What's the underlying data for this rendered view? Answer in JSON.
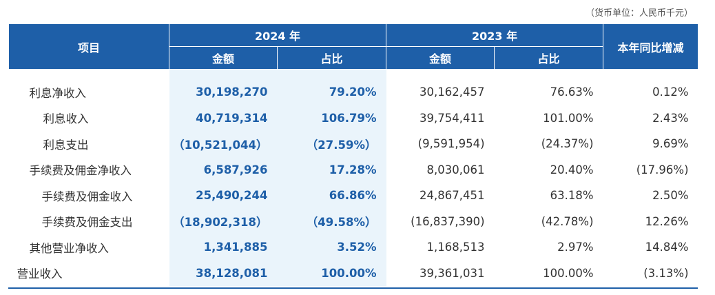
{
  "unit_note": "（货币单位：人民币千元）",
  "header": {
    "item": "项目",
    "year_2024": "2024 年",
    "year_2023": "2023 年",
    "yoy": "本年同比增减",
    "amount": "金额",
    "ratio": "占比"
  },
  "rows": [
    {
      "label": "利息净收入",
      "a2024": "30,198,270",
      "r2024": "79.20%",
      "a2023": "30,162,457",
      "r2023": "76.63%",
      "yoy": "0.12%"
    },
    {
      "label": "利息收入",
      "a2024": "40,719,314",
      "r2024": "106.79%",
      "a2023": "39,754,411",
      "r2023": "101.00%",
      "yoy": "2.43%"
    },
    {
      "label": "利息支出",
      "a2024": "（10,521,044）",
      "r2024": "（27.59%）",
      "a2023": "(9,591,954)",
      "r2023": "(24.37%)",
      "yoy": "9.69%"
    },
    {
      "label": "手续费及佣金净收入",
      "a2024": "6,587,926",
      "r2024": "17.28%",
      "a2023": "8,030,061",
      "r2023": "20.40%",
      "yoy": "(17.96%)"
    },
    {
      "label": "手续费及佣金收入",
      "a2024": "25,490,244",
      "r2024": "66.86%",
      "a2023": "24,867,451",
      "r2023": "63.18%",
      "yoy": "2.50%"
    },
    {
      "label": "手续费及佣金支出",
      "a2024": "（18,902,318）",
      "r2024": "（49.58%）",
      "a2023": "(16,837,390)",
      "r2023": "(42.78%)",
      "yoy": "12.26%"
    },
    {
      "label": "其他营业净收入",
      "a2024": "1,341,885",
      "r2024": "3.52%",
      "a2023": "1,168,513",
      "r2023": "2.97%",
      "yoy": "14.84%"
    },
    {
      "label": "营业收入",
      "a2024": "38,128,081",
      "r2024": "100.00%",
      "a2023": "39,361,031",
      "r2023": "100.00%",
      "yoy": "(3.13%)"
    }
  ],
  "colors": {
    "header_bg": "#1e5fa8",
    "highlight_bg": "#eaf4fb",
    "highlight_text": "#1e5fa8"
  }
}
